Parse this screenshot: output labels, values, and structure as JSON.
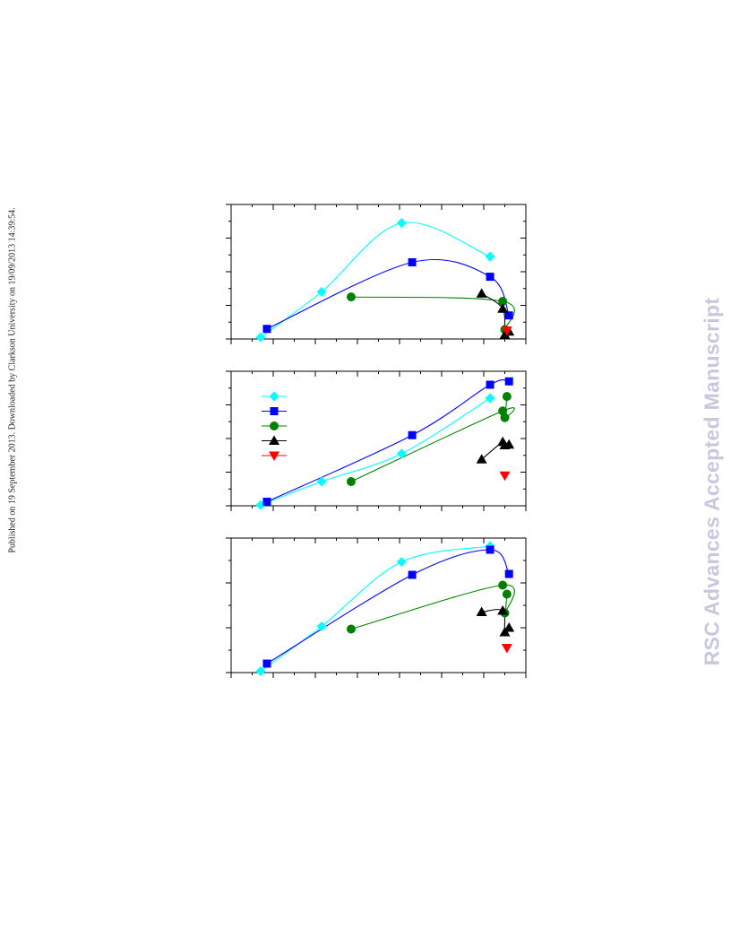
{
  "header": {
    "publication_note": "Published on 19 September 2013. Downloaded by Clarkson University on 19/09/2013 14:39:54."
  },
  "watermark": {
    "text": "RSC Advances Accepted Manuscript",
    "color": "#c8c8dc"
  },
  "colors": {
    "cyan": "#00ffff",
    "blue": "#0000ff",
    "green": "#008000",
    "black": "#000000",
    "red": "#ff0000"
  },
  "chart_data": [
    {
      "type": "scatter",
      "xlim": [
        0,
        70
      ],
      "ylim": [
        0,
        4
      ],
      "grid": false,
      "legend": "none",
      "series": [
        {
          "marker": "diamond",
          "color": "#00ffff",
          "x": [
            7,
            21.5,
            40.5,
            61.5
          ],
          "y": [
            0.05,
            1.4,
            3.45,
            2.45
          ],
          "curve": true
        },
        {
          "marker": "square",
          "color": "#0000ff",
          "x": [
            8.5,
            43,
            61.5,
            66
          ],
          "y": [
            0.3,
            2.28,
            1.85,
            0.7
          ],
          "curve": true
        },
        {
          "marker": "circle",
          "color": "#008000",
          "x": [
            28.5,
            64.5,
            65
          ],
          "y": [
            1.25,
            1.12,
            0.28
          ],
          "curve": true
        },
        {
          "marker": "triangle-up",
          "color": "#000000",
          "x": [
            59.5,
            64.5,
            65,
            66
          ],
          "y": [
            1.35,
            0.9,
            0.12,
            0.22
          ],
          "curve": true
        },
        {
          "marker": "triangle-down",
          "color": "#ff0000",
          "x": [
            65.5
          ],
          "y": [
            0.25
          ],
          "curve": false
        }
      ]
    },
    {
      "type": "scatter",
      "xlim": [
        0,
        70
      ],
      "ylim": [
        0,
        4
      ],
      "grid": false,
      "legend": "top-left",
      "series": [
        {
          "marker": "diamond",
          "color": "#00ffff",
          "x": [
            7,
            21.5,
            40.5,
            61.5
          ],
          "y": [
            0.02,
            0.72,
            1.55,
            3.2
          ],
          "curve": true
        },
        {
          "marker": "square",
          "color": "#0000ff",
          "x": [
            8.5,
            43,
            61.5,
            66
          ],
          "y": [
            0.12,
            2.1,
            3.6,
            3.7
          ],
          "curve": true
        },
        {
          "marker": "circle",
          "color": "#008000",
          "x": [
            28.5,
            64.5,
            65,
            65.5
          ],
          "y": [
            0.72,
            2.82,
            2.62,
            3.25
          ],
          "curve": true
        },
        {
          "marker": "triangle-up",
          "color": "#000000",
          "x": [
            59.5,
            64.5,
            65,
            66
          ],
          "y": [
            1.38,
            1.9,
            1.8,
            1.82
          ],
          "curve": true
        },
        {
          "marker": "triangle-down",
          "color": "#ff0000",
          "x": [
            65
          ],
          "y": [
            0.9
          ],
          "curve": false
        }
      ]
    },
    {
      "type": "scatter",
      "xlim": [
        0,
        70
      ],
      "ylim": [
        0,
        3
      ],
      "grid": false,
      "legend": "none",
      "series": [
        {
          "marker": "diamond",
          "color": "#00ffff",
          "x": [
            7,
            21.5,
            40.5,
            61.5
          ],
          "y": [
            0.03,
            1.03,
            2.47,
            2.82
          ],
          "curve": true
        },
        {
          "marker": "square",
          "color": "#0000ff",
          "x": [
            8.5,
            43,
            61.5,
            66
          ],
          "y": [
            0.2,
            2.18,
            2.74,
            2.2
          ],
          "curve": true
        },
        {
          "marker": "circle",
          "color": "#008000",
          "x": [
            28.5,
            64.5,
            65,
            65.5
          ],
          "y": [
            0.97,
            1.95,
            1.33,
            1.75
          ],
          "curve": true
        },
        {
          "marker": "triangle-up",
          "color": "#000000",
          "x": [
            59.5,
            64.5,
            65,
            66
          ],
          "y": [
            1.35,
            1.38,
            0.9,
            1.0
          ],
          "curve": true
        },
        {
          "marker": "triangle-down",
          "color": "#ff0000",
          "x": [
            65.5
          ],
          "y": [
            0.55
          ],
          "curve": false
        }
      ]
    }
  ]
}
